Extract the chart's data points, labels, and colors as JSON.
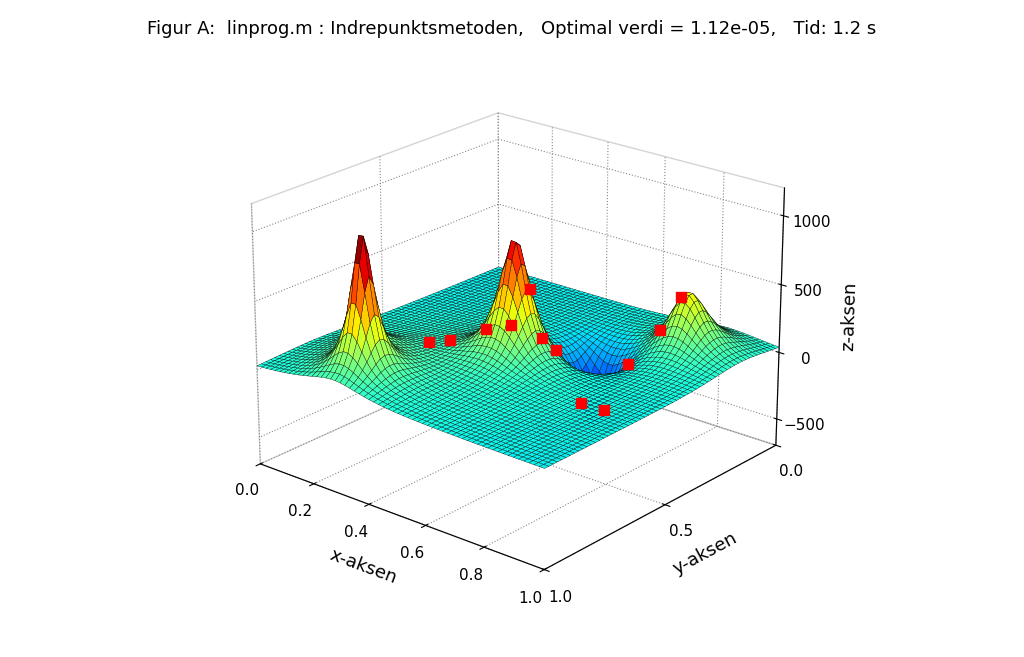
{
  "title": "Figur A:  linprog.m : Indrepunktsmetoden,   Optimal verdi = 1.12e-05,   Tid: 1.2 s",
  "xlabel": "x-aksen",
  "ylabel": "y-aksen",
  "zlabel": "z-aksen",
  "xlim": [
    0,
    1
  ],
  "ylim": [
    0,
    1
  ],
  "zlim": [
    -700,
    1200
  ],
  "xticks": [
    0,
    0.2,
    0.4,
    0.6,
    0.8,
    1
  ],
  "yticks": [
    0,
    0.5,
    1
  ],
  "zticks": [
    -500,
    0,
    500,
    1000
  ],
  "grid_n": 60,
  "colormap": "jet",
  "title_fontsize": 13,
  "axis_label_fontsize": 13,
  "tick_fontsize": 11,
  "red_points_xy": [
    [
      0.28,
      0.62
    ],
    [
      0.32,
      0.58
    ],
    [
      0.38,
      0.5
    ],
    [
      0.42,
      0.44
    ],
    [
      0.48,
      0.38
    ],
    [
      0.52,
      0.48
    ],
    [
      0.56,
      0.42
    ],
    [
      0.6,
      0.36
    ],
    [
      0.65,
      0.32
    ],
    [
      0.7,
      0.28
    ],
    [
      0.76,
      0.22
    ],
    [
      0.8,
      0.18
    ]
  ],
  "elev": 22,
  "azim": -50,
  "background_color": "#ffffff"
}
